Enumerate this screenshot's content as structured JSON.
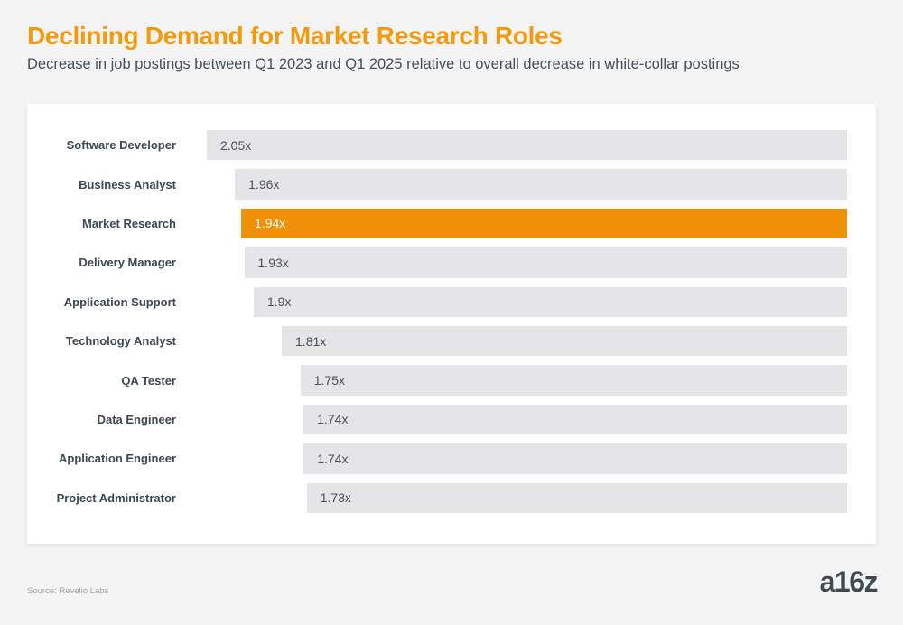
{
  "header": {
    "title": "Declining Demand for Market Research Roles",
    "subtitle": "Decrease in job postings between Q1 2023 and Q1 2025 relative to overall decrease in white-collar postings"
  },
  "chart_data": {
    "type": "bar",
    "orientation": "horizontal-right-aligned",
    "categories": [
      "Software Developer",
      "Business Analyst",
      "Market Research",
      "Delivery Manager",
      "Application Support",
      "Technology Analyst",
      "QA Tester",
      "Data Engineer",
      "Application Engineer",
      "Project Administrator"
    ],
    "values": [
      2.05,
      1.96,
      1.94,
      1.93,
      1.9,
      1.81,
      1.75,
      1.74,
      1.74,
      1.73
    ],
    "value_labels": [
      "2.05x",
      "1.96x",
      "1.94x",
      "1.93x",
      "1.9x",
      "1.81x",
      "1.75x",
      "1.74x",
      "1.74x",
      "1.73x"
    ],
    "highlight_index": 2,
    "highlight_category": "Market Research",
    "xlim": [
      0,
      2.05
    ],
    "title": "Declining Demand for Market Research Roles",
    "xlabel": "",
    "ylabel": "",
    "grid": false,
    "legend": false,
    "bar_color": "#E5E4E6",
    "highlight_color": "#EE9008",
    "value_label_color": "#49525C",
    "highlight_value_label_color": "#ffffff"
  },
  "footer": {
    "source": "Source: Revelio Labs",
    "logo_text": "a16z"
  },
  "colors": {
    "page_background": "#f4f4f4",
    "card_background": "#ffffff",
    "title_orange": "#F49A0F",
    "label_dark": "#3E4852",
    "subtitle_gray": "#46505A",
    "source_gray": "#9DA3A9",
    "logo_gray": "#404A54"
  }
}
